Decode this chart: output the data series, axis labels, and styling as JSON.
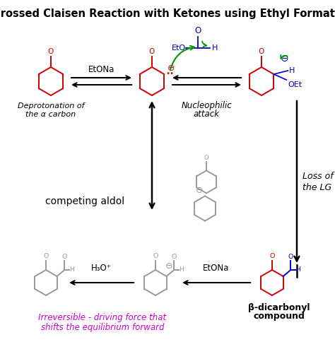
{
  "title": "Crossed Claisen Reaction with Ketones using Ethyl Formate",
  "title_fontsize": 10.5,
  "title_fontweight": "bold",
  "bg_color": "#ffffff",
  "red": "#cc0000",
  "blue": "#0000cc",
  "green": "#009900",
  "gray": "#999999",
  "magenta": "#cc00cc",
  "black": "#000000",
  "label_deprotonation": [
    "Deprotonation of",
    "the α carbon"
  ],
  "label_nucleophilic": [
    "Nucleophilic",
    "attack"
  ],
  "label_loss_lg": [
    "Loss of",
    "the LG"
  ],
  "label_competing": "competing aldol",
  "label_etona1": "EtONa",
  "label_etona2": "EtONa",
  "label_h3o": "H₃O⁺",
  "label_beta": [
    "β-dicarbonyl",
    "compound"
  ],
  "label_irreversible": [
    "Irreversible - driving force that",
    "shifts the equilibrium forward"
  ]
}
